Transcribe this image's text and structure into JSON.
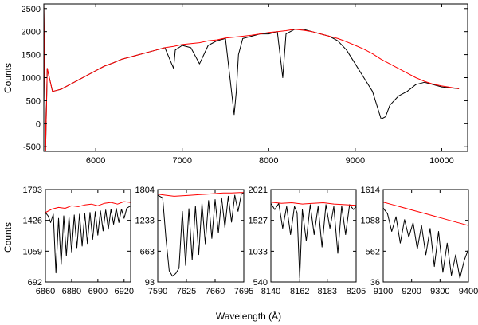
{
  "figure": {
    "ylabel": "Counts",
    "xlabel": "Wavelength (Å)"
  },
  "chart_data": [
    {
      "type": "line",
      "panel": "main",
      "title": "",
      "xlabel": "",
      "ylabel": "Counts",
      "xlim": [
        5400,
        10300
      ],
      "ylim": [
        -600,
        2600
      ],
      "x_ticks": [
        6000,
        7000,
        8000,
        9000,
        10000
      ],
      "y_ticks": [
        -500,
        0,
        500,
        1000,
        1500,
        2000,
        2500
      ],
      "series": [
        {
          "color": "#000000",
          "x": [
            5400,
            5420,
            5440,
            5500,
            5600,
            5700,
            5800,
            5900,
            6000,
            6100,
            6200,
            6300,
            6400,
            6500,
            6600,
            6700,
            6800,
            6900,
            6920,
            7000,
            7100,
            7200,
            7300,
            7400,
            7500,
            7600,
            7625,
            7650,
            7700,
            7800,
            7900,
            8000,
            8100,
            8162,
            8200,
            8300,
            8400,
            8500,
            8600,
            8700,
            8800,
            8900,
            9000,
            9100,
            9200,
            9300,
            9350,
            9400,
            9500,
            9600,
            9700,
            9800,
            9900,
            10000,
            10100,
            10200
          ],
          "y": [
            2600,
            -600,
            1200,
            700,
            750,
            850,
            950,
            1050,
            1150,
            1250,
            1320,
            1400,
            1450,
            1500,
            1550,
            1600,
            1650,
            1200,
            1600,
            1700,
            1650,
            1300,
            1700,
            1800,
            1850,
            200,
            700,
            1500,
            1850,
            1900,
            1950,
            1950,
            2000,
            1000,
            1950,
            2050,
            2050,
            2000,
            1950,
            1900,
            1800,
            1600,
            1300,
            1000,
            700,
            100,
            150,
            400,
            600,
            700,
            850,
            900,
            850,
            800,
            780,
            760
          ]
        },
        {
          "color": "#ff0000",
          "x": [
            5400,
            5420,
            5440,
            5500,
            5600,
            5700,
            5800,
            5900,
            6000,
            6100,
            6200,
            6300,
            6400,
            6500,
            6600,
            6700,
            6800,
            6900,
            7000,
            7100,
            7200,
            7300,
            7400,
            7500,
            7600,
            7700,
            7800,
            7900,
            8000,
            8100,
            8200,
            8300,
            8400,
            8500,
            8600,
            8700,
            8800,
            8900,
            9000,
            9100,
            9200,
            9300,
            9400,
            9500,
            9600,
            9700,
            9800,
            9900,
            10000,
            10100,
            10200
          ],
          "y": [
            2600,
            -600,
            1200,
            700,
            750,
            850,
            950,
            1050,
            1150,
            1250,
            1320,
            1400,
            1450,
            1500,
            1550,
            1600,
            1650,
            1680,
            1720,
            1740,
            1760,
            1800,
            1820,
            1860,
            1880,
            1900,
            1920,
            1950,
            1980,
            2000,
            2020,
            2050,
            2030,
            2000,
            1950,
            1900,
            1850,
            1780,
            1700,
            1620,
            1520,
            1400,
            1300,
            1200,
            1100,
            1000,
            920,
            860,
            820,
            790,
            760
          ]
        }
      ]
    },
    {
      "type": "line",
      "panel": "zoom-1",
      "xlim": [
        6860,
        6925
      ],
      "ylim": [
        692,
        1793
      ],
      "x_ticks": [
        6860,
        6880,
        6900,
        6920
      ],
      "y_ticks": [
        692,
        1059,
        1426,
        1793
      ],
      "series": [
        {
          "color": "#000000",
          "x": [
            6860,
            6862,
            6864,
            6866,
            6868,
            6870,
            6872,
            6874,
            6876,
            6878,
            6880,
            6882,
            6884,
            6886,
            6888,
            6890,
            6892,
            6894,
            6896,
            6898,
            6900,
            6902,
            6904,
            6906,
            6908,
            6910,
            6912,
            6914,
            6916,
            6918,
            6920,
            6922,
            6925
          ],
          "y": [
            1520,
            1480,
            1400,
            1500,
            800,
            1450,
            900,
            1480,
            1000,
            1470,
            1050,
            1490,
            1100,
            1500,
            1120,
            1510,
            1150,
            1520,
            1200,
            1530,
            1250,
            1540,
            1300,
            1550,
            1320,
            1560,
            1380,
            1570,
            1400,
            1560,
            1450,
            1570,
            1600
          ]
        },
        {
          "color": "#ff0000",
          "x": [
            6860,
            6865,
            6870,
            6875,
            6880,
            6885,
            6890,
            6895,
            6900,
            6905,
            6910,
            6915,
            6920,
            6925
          ],
          "y": [
            1520,
            1560,
            1580,
            1570,
            1600,
            1590,
            1610,
            1620,
            1600,
            1630,
            1640,
            1620,
            1650,
            1640
          ]
        }
      ]
    },
    {
      "type": "line",
      "panel": "zoom-2",
      "xlim": [
        7590,
        7695
      ],
      "ylim": [
        93,
        1804
      ],
      "x_ticks": [
        7590,
        7625,
        7660,
        7695
      ],
      "y_ticks": [
        93,
        663,
        1233,
        1804
      ],
      "series": [
        {
          "color": "#000000",
          "x": [
            7590,
            7596,
            7600,
            7604,
            7608,
            7612,
            7616,
            7620,
            7624,
            7628,
            7632,
            7636,
            7640,
            7644,
            7648,
            7652,
            7656,
            7660,
            7664,
            7668,
            7672,
            7676,
            7680,
            7684,
            7688,
            7692,
            7695
          ],
          "y": [
            1700,
            1650,
            900,
            300,
            200,
            250,
            350,
            1400,
            400,
            1450,
            500,
            1500,
            600,
            1550,
            800,
            1600,
            900,
            1620,
            1000,
            1650,
            1100,
            1680,
            1200,
            1700,
            1400,
            1720,
            1750
          ]
        },
        {
          "color": "#ff0000",
          "x": [
            7590,
            7600,
            7610,
            7620,
            7630,
            7640,
            7650,
            7660,
            7670,
            7680,
            7690,
            7695
          ],
          "y": [
            1720,
            1700,
            1680,
            1690,
            1700,
            1710,
            1720,
            1730,
            1740,
            1740,
            1750,
            1750
          ]
        }
      ]
    },
    {
      "type": "line",
      "panel": "zoom-3",
      "xlim": [
        8140,
        8205
      ],
      "ylim": [
        540,
        2021
      ],
      "x_ticks": [
        8140,
        8162,
        8183,
        8205
      ],
      "y_ticks": [
        540,
        1033,
        1527,
        2021
      ],
      "series": [
        {
          "color": "#000000",
          "x": [
            8140,
            8143,
            8146,
            8149,
            8152,
            8155,
            8158,
            8160,
            8162,
            8164,
            8167,
            8170,
            8173,
            8176,
            8179,
            8182,
            8185,
            8188,
            8191,
            8194,
            8197,
            8200,
            8203,
            8205
          ],
          "y": [
            1800,
            1700,
            1800,
            1400,
            1750,
            1300,
            1750,
            1650,
            600,
            1700,
            1200,
            1780,
            1300,
            1750,
            1100,
            1780,
            1400,
            1750,
            1000,
            1760,
            1300,
            1780,
            1700,
            1750
          ]
        },
        {
          "color": "#ff0000",
          "x": [
            8140,
            8148,
            8156,
            8164,
            8172,
            8180,
            8188,
            8196,
            8205
          ],
          "y": [
            1820,
            1800,
            1810,
            1790,
            1800,
            1810,
            1790,
            1780,
            1770
          ]
        }
      ]
    },
    {
      "type": "line",
      "panel": "zoom-4",
      "xlim": [
        9100,
        9400
      ],
      "ylim": [
        36,
        1614
      ],
      "x_ticks": [
        9100,
        9200,
        9300,
        9400
      ],
      "y_ticks": [
        36,
        562,
        1088,
        1614
      ],
      "series": [
        {
          "color": "#000000",
          "x": [
            9100,
            9115,
            9130,
            9145,
            9160,
            9175,
            9190,
            9205,
            9220,
            9235,
            9250,
            9265,
            9280,
            9295,
            9310,
            9325,
            9340,
            9355,
            9370,
            9385,
            9400
          ],
          "y": [
            1300,
            1200,
            900,
            1150,
            700,
            1100,
            800,
            1050,
            600,
            1000,
            500,
            950,
            300,
            900,
            200,
            700,
            150,
            500,
            100,
            400,
            600
          ]
        },
        {
          "color": "#ff0000",
          "x": [
            9100,
            9130,
            9160,
            9190,
            9220,
            9250,
            9280,
            9310,
            9340,
            9370,
            9400
          ],
          "y": [
            1400,
            1360,
            1320,
            1280,
            1240,
            1200,
            1160,
            1120,
            1080,
            1040,
            1000
          ]
        }
      ]
    }
  ]
}
